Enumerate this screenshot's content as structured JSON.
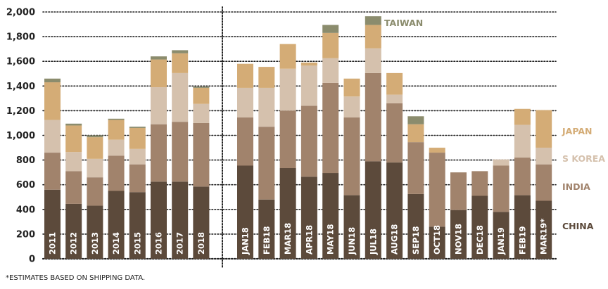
{
  "chart_data": {
    "type": "bar",
    "stacked": true,
    "title": "",
    "xlabel": "",
    "ylabel": "",
    "ylim": [
      0,
      2000
    ],
    "yticks": [
      "0",
      "200",
      "400",
      "600",
      "800",
      "1,000",
      "1,200",
      "1,400",
      "1,600",
      "1,800",
      "2,000"
    ],
    "grid": true,
    "legend_placement": "right",
    "categories": [
      "2011",
      "2012",
      "2013",
      "2014",
      "2015",
      "2016",
      "2017",
      "2018",
      "JAN18",
      "FEB18",
      "MAR18",
      "APR18",
      "MAY18",
      "JUN18",
      "JUL18",
      "AUG18",
      "SEP18",
      "OCT18",
      "NOV18",
      "DEC18",
      "JAN19",
      "FEB19",
      "MAR19*"
    ],
    "group_split_after": 8,
    "series": [
      {
        "name": "CHINA",
        "color": "#5c4a3b",
        "values": [
          560,
          445,
          430,
          550,
          540,
          625,
          625,
          585,
          755,
          480,
          735,
          665,
          695,
          515,
          790,
          780,
          525,
          260,
          395,
          510,
          380,
          515,
          470
        ]
      },
      {
        "name": "INDIA",
        "color": "#a1836c",
        "values": [
          300,
          265,
          230,
          285,
          225,
          465,
          485,
          515,
          390,
          590,
          465,
          575,
          730,
          630,
          715,
          480,
          420,
          600,
          305,
          200,
          375,
          305,
          295
        ]
      },
      {
        "name": "S KOREA",
        "color": "#d5c1ad",
        "values": [
          265,
          155,
          150,
          130,
          125,
          300,
          395,
          155,
          240,
          315,
          340,
          325,
          200,
          170,
          200,
          70,
          0,
          0,
          0,
          0,
          50,
          265,
          135
        ]
      },
      {
        "name": "JAPAN",
        "color": "#d4ac76",
        "values": [
          305,
          215,
          175,
          160,
          170,
          225,
          160,
          130,
          195,
          170,
          200,
          25,
          205,
          145,
          190,
          175,
          145,
          40,
          0,
          0,
          0,
          130,
          305
        ]
      },
      {
        "name": "TAIWAN",
        "color": "#8b8c6d",
        "values": [
          30,
          15,
          15,
          10,
          10,
          25,
          25,
          10,
          0,
          0,
          0,
          0,
          65,
          0,
          70,
          0,
          65,
          0,
          0,
          0,
          0,
          0,
          0
        ]
      }
    ],
    "legend": [
      "TAIWAN",
      "JAPAN",
      "S KOREA",
      "INDIA",
      "CHINA"
    ],
    "footnote": "*ESTIMATES BASED ON SHIPPING DATA."
  }
}
